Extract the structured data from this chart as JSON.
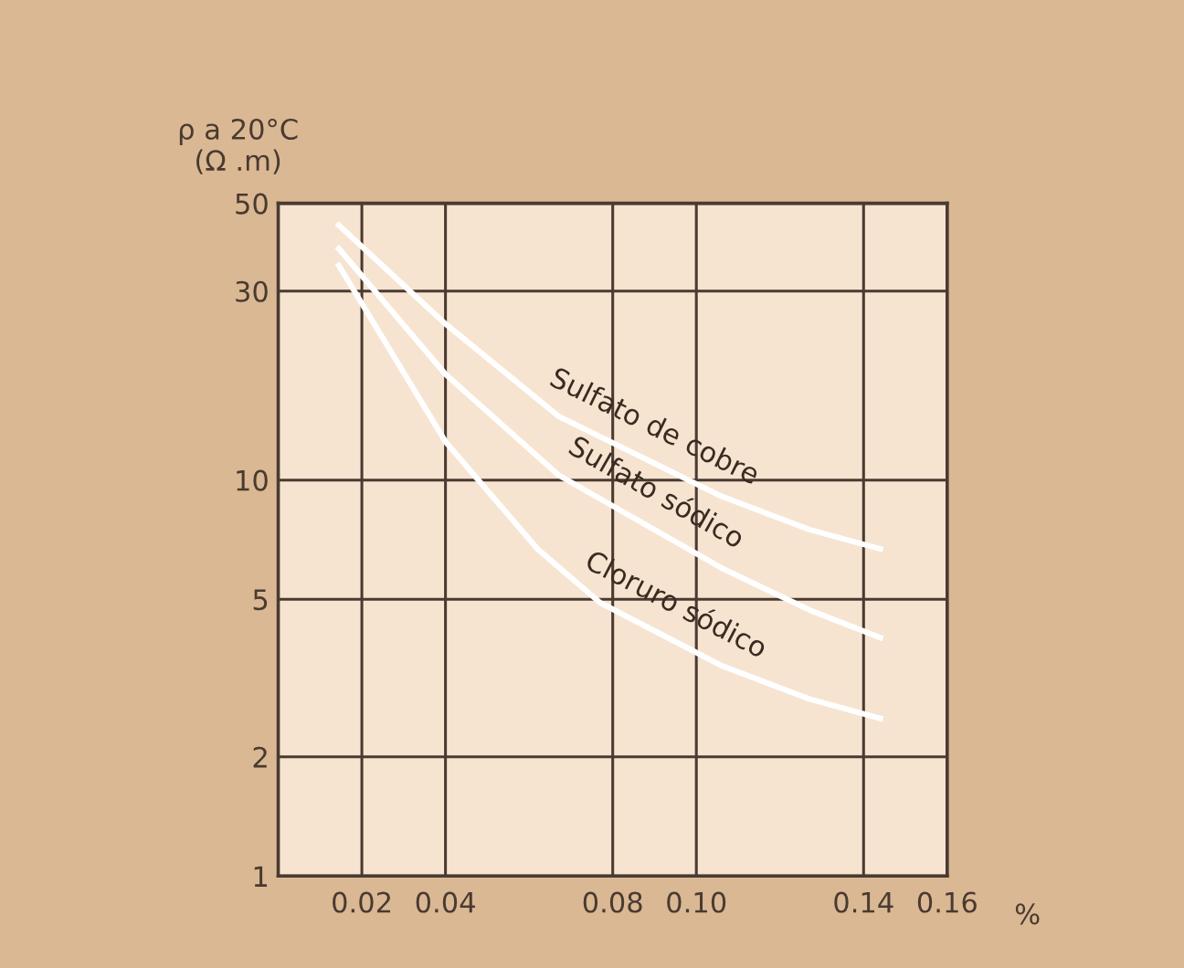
{
  "chart_data": {
    "type": "line",
    "xlabel": "%",
    "ylabel": "ρ a 20°C\n(Ω .m)",
    "log": "y",
    "grid": true,
    "legend": false,
    "marker": "none",
    "line_style": "solid",
    "xlim": [
      0,
      0.16
    ],
    "xticks": [
      0.02,
      0.04,
      0.08,
      {
        "value": 0.1,
        "label": "0.10"
      },
      0.14,
      0.16
    ],
    "ylim": [
      1,
      50
    ],
    "yticks": [
      1,
      2,
      5,
      10,
      30,
      50
    ],
    "series": [
      {
        "name": "Sulfato de cobre",
        "color": "#ffffff",
        "x": [
          0.0145,
          0.04,
          0.067,
          0.106,
          0.127,
          0.144
        ],
        "values": [
          44,
          24.8,
          14.5,
          9.1,
          7.5,
          6.7
        ]
      },
      {
        "name": "Sulfato sódico",
        "color": "#ffffff",
        "x": [
          0.0145,
          0.04,
          0.067,
          0.106,
          0.127,
          0.144
        ],
        "values": [
          38.4,
          18.5,
          10.3,
          6.0,
          4.7,
          4.0
        ]
      },
      {
        "name": "Cloruro sódico",
        "color": "#ffffff",
        "x": [
          0.0145,
          0.04,
          0.062,
          0.077,
          0.106,
          0.127,
          0.144
        ],
        "values": [
          34.8,
          12.5,
          6.7,
          4.9,
          3.4,
          2.8,
          2.5
        ]
      }
    ]
  }
}
